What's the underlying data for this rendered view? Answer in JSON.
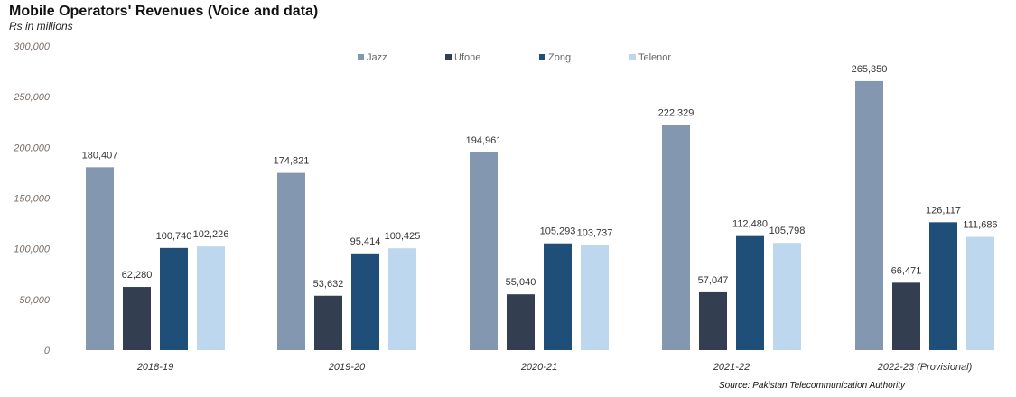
{
  "title": "Mobile Operators' Revenues (Voice and data)",
  "subtitle": "Rs in millions",
  "source": "Source: Pakistan Telecommunication Authority",
  "chart_data": {
    "type": "bar",
    "title": "Mobile Operators' Revenues (Voice and data)",
    "ylabel": "Rs in millions",
    "xlabel": "",
    "ylim": [
      0,
      300000
    ],
    "yticks": [
      0,
      50000,
      100000,
      150000,
      200000,
      250000,
      300000
    ],
    "ytick_labels": [
      "0",
      "50,000",
      "100,000",
      "150,000",
      "200,000",
      "250,000",
      "300,000"
    ],
    "grid": false,
    "legend_position": "top",
    "categories": [
      "2018-19",
      "2019-20",
      "2020-21",
      "2021-22",
      "2022-23 (Provisional)"
    ],
    "series": [
      {
        "name": "Jazz",
        "color": "#8497b0",
        "values": [
          180407,
          174821,
          194961,
          222329,
          265350
        ],
        "labels": [
          "180,407",
          "174,821",
          "194,961",
          "222,329",
          "265,350"
        ]
      },
      {
        "name": "Ufone",
        "color": "#333f50",
        "values": [
          62280,
          53632,
          55040,
          57047,
          66471
        ],
        "labels": [
          "62,280",
          "53,632",
          "55,040",
          "57,047",
          "66,471"
        ]
      },
      {
        "name": "Zong",
        "color": "#1f4e79",
        "values": [
          100740,
          95414,
          105293,
          112480,
          126117
        ],
        "labels": [
          "100,740",
          "95,414",
          "105,293",
          "112,480",
          "126,117"
        ]
      },
      {
        "name": "Telenor",
        "color": "#bdd7ee",
        "values": [
          102226,
          100425,
          103737,
          105798,
          111686
        ],
        "labels": [
          "102,226",
          "100,425",
          "103,737",
          "105,798",
          "111,686"
        ]
      }
    ]
  }
}
